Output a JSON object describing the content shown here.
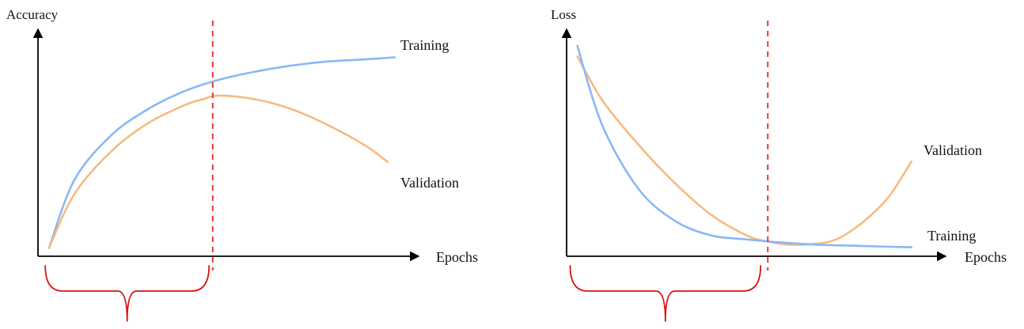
{
  "colors": {
    "training": "#8ab8f5",
    "validation": "#f5bb80",
    "marker": "#ee3333",
    "brace": "#dd1111",
    "axis": "#000000"
  },
  "chart_data": [
    {
      "type": "line",
      "title": "",
      "ylabel": "Accuracy",
      "xlabel": "Epochs",
      "xlim": [
        0,
        10
      ],
      "ylim": [
        0,
        1
      ],
      "grid": false,
      "series": [
        {
          "name": "Training",
          "x": [
            0.3,
            1,
            2,
            3,
            4,
            5,
            6,
            7,
            8,
            9,
            9.8
          ],
          "values": [
            0.04,
            0.38,
            0.6,
            0.73,
            0.82,
            0.88,
            0.92,
            0.95,
            0.97,
            0.98,
            0.99
          ]
        },
        {
          "name": "Validation",
          "x": [
            0.3,
            1,
            2,
            3,
            4,
            4.5,
            5,
            6,
            7,
            8,
            9,
            9.6
          ],
          "values": [
            0.04,
            0.31,
            0.52,
            0.66,
            0.75,
            0.78,
            0.8,
            0.78,
            0.73,
            0.65,
            0.55,
            0.47
          ]
        }
      ],
      "annotations": [
        {
          "type": "vline",
          "x": 4.8
        },
        {
          "type": "brace",
          "from": 0.2,
          "to": 4.7
        }
      ]
    },
    {
      "type": "line",
      "title": "",
      "ylabel": "Loss",
      "xlabel": "Epochs",
      "xlim": [
        0,
        10
      ],
      "ylim": [
        0,
        1
      ],
      "grid": false,
      "series": [
        {
          "name": "Validation",
          "x": [
            0.3,
            1,
            2,
            3,
            4,
            5,
            5.6,
            6.2,
            7,
            7.5,
            8,
            8.5,
            9,
            9.6
          ],
          "values": [
            0.95,
            0.74,
            0.53,
            0.35,
            0.2,
            0.1,
            0.07,
            0.055,
            0.06,
            0.08,
            0.13,
            0.2,
            0.29,
            0.45
          ]
        },
        {
          "name": "Training",
          "x": [
            0.3,
            1,
            2,
            3,
            4,
            5,
            6,
            7,
            8,
            9,
            9.6
          ],
          "values": [
            1.0,
            0.62,
            0.32,
            0.17,
            0.1,
            0.08,
            0.065,
            0.055,
            0.05,
            0.045,
            0.043
          ]
        }
      ],
      "annotations": [
        {
          "type": "vline",
          "x": 5.6
        },
        {
          "type": "brace",
          "from": 0.1,
          "to": 5.4
        }
      ]
    }
  ]
}
